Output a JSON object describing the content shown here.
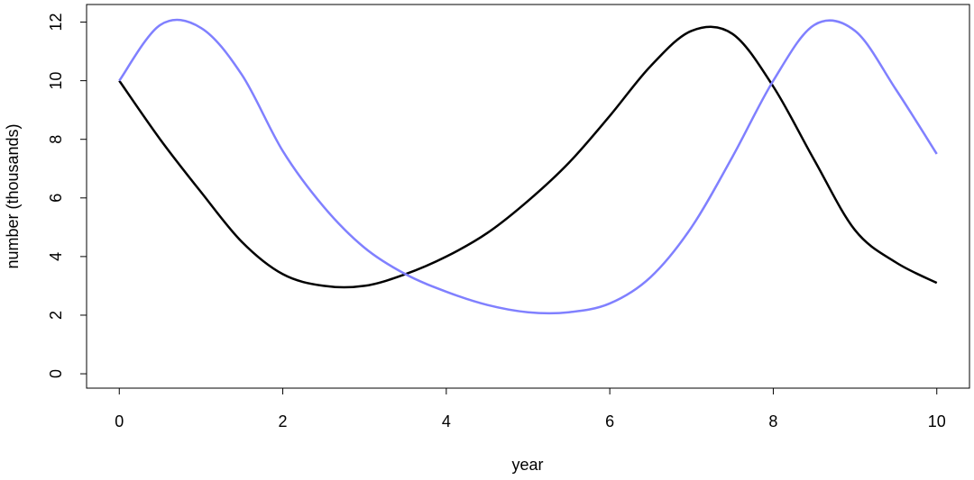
{
  "chart_data": {
    "type": "line",
    "xlabel": "year",
    "ylabel": "number (thousands)",
    "x": [
      0,
      0.5,
      1,
      1.5,
      2,
      2.5,
      3,
      3.5,
      4,
      4.5,
      5,
      5.5,
      6,
      6.5,
      7,
      7.5,
      8,
      8.5,
      9,
      9.5,
      10
    ],
    "series": [
      {
        "color": "#000000",
        "values": [
          10,
          8.0,
          6.2,
          4.5,
          3.4,
          3.0,
          3.0,
          3.4,
          4.0,
          4.8,
          5.9,
          7.2,
          8.8,
          10.5,
          11.7,
          11.6,
          9.8,
          7.3,
          4.9,
          3.8,
          3.1
        ]
      },
      {
        "color": "#8080ff",
        "values": [
          10,
          11.9,
          11.8,
          10.2,
          7.6,
          5.7,
          4.3,
          3.4,
          2.8,
          2.35,
          2.1,
          2.1,
          2.4,
          3.3,
          5.0,
          7.4,
          10.0,
          11.9,
          11.7,
          9.7,
          7.5
        ]
      }
    ],
    "xlim": [
      -0.4,
      10.4
    ],
    "ylim": [
      -0.49,
      12.6
    ],
    "xticks": [
      0,
      2,
      4,
      6,
      8,
      10
    ],
    "yticks": [
      0,
      2,
      4,
      6,
      8,
      10,
      12
    ]
  }
}
